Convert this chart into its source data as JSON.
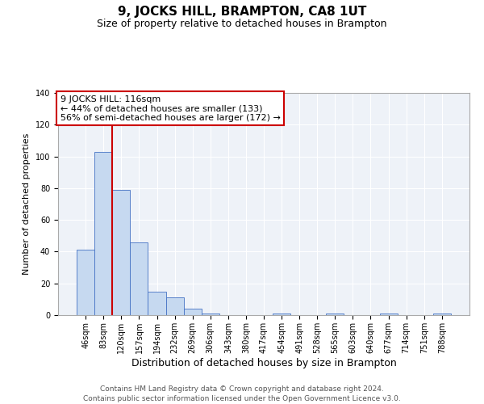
{
  "title": "9, JOCKS HILL, BRAMPTON, CA8 1UT",
  "subtitle": "Size of property relative to detached houses in Brampton",
  "xlabel": "Distribution of detached houses by size in Brampton",
  "ylabel": "Number of detached properties",
  "bar_labels": [
    "46sqm",
    "83sqm",
    "120sqm",
    "157sqm",
    "194sqm",
    "232sqm",
    "269sqm",
    "306sqm",
    "343sqm",
    "380sqm",
    "417sqm",
    "454sqm",
    "491sqm",
    "528sqm",
    "565sqm",
    "603sqm",
    "640sqm",
    "677sqm",
    "714sqm",
    "751sqm",
    "788sqm"
  ],
  "bar_values": [
    41,
    103,
    79,
    46,
    15,
    11,
    4,
    1,
    0,
    0,
    0,
    1,
    0,
    0,
    1,
    0,
    0,
    1,
    0,
    0,
    1
  ],
  "bar_color": "#c6d9f0",
  "bar_edge_color": "#4472c4",
  "vline_color": "#cc0000",
  "vline_index": 1.5,
  "ylim": [
    0,
    140
  ],
  "yticks": [
    0,
    20,
    40,
    60,
    80,
    100,
    120,
    140
  ],
  "annotation_title": "9 JOCKS HILL: 116sqm",
  "annotation_line1": "← 44% of detached houses are smaller (133)",
  "annotation_line2": "56% of semi-detached houses are larger (172) →",
  "annotation_box_color": "#ffffff",
  "annotation_box_edge": "#cc0000",
  "footer_line1": "Contains HM Land Registry data © Crown copyright and database right 2024.",
  "footer_line2": "Contains public sector information licensed under the Open Government Licence v3.0.",
  "title_fontsize": 11,
  "subtitle_fontsize": 9,
  "xlabel_fontsize": 9,
  "ylabel_fontsize": 8,
  "tick_fontsize": 7,
  "footer_fontsize": 6.5,
  "annotation_fontsize": 8
}
